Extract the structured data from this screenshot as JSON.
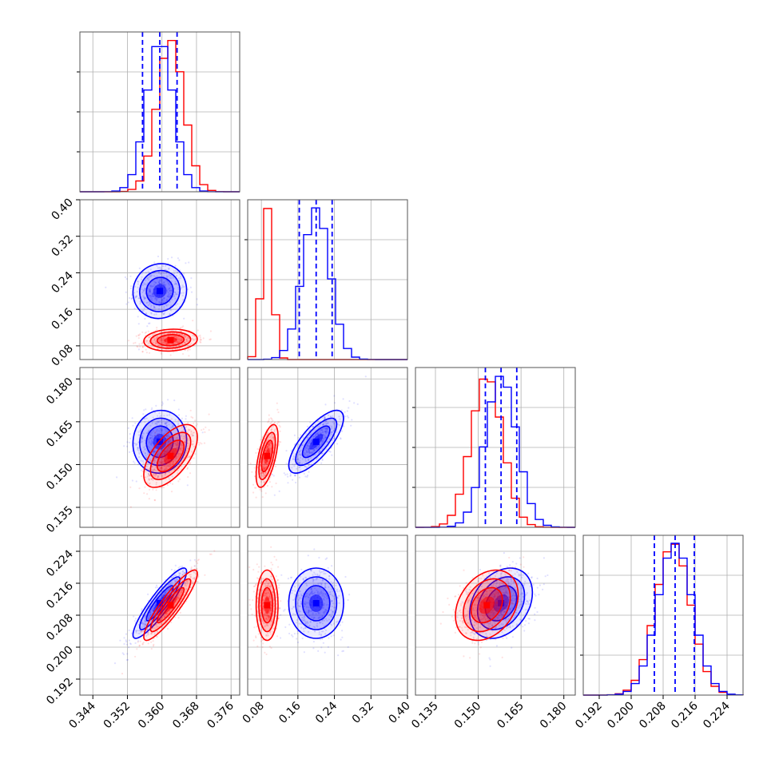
{
  "colors": {
    "series_a": "#0000ff",
    "series_b": "#ff0000",
    "grid": "#b0b0b0",
    "frame": "#555555"
  },
  "chart_data": {
    "type": "corner",
    "n_params": 4,
    "grid": true,
    "series": [
      {
        "color": "#0000ff",
        "means": [
          0.3595,
          0.2,
          0.158,
          0.211
        ],
        "sigmas": [
          0.0031,
          0.03,
          0.0055,
          0.0044
        ]
      },
      {
        "color": "#ff0000",
        "means": [
          0.362,
          0.0925,
          0.153,
          0.2105
        ],
        "sigmas": [
          0.0031,
          0.012,
          0.0055,
          0.0044
        ]
      }
    ],
    "quantiles_series_a": [
      [
        0.3555,
        0.3595,
        0.3635
      ],
      [
        0.163,
        0.2,
        0.235
      ],
      [
        0.1525,
        0.158,
        0.1635
      ],
      [
        0.2058,
        0.211,
        0.2158
      ]
    ],
    "parameters": [
      {
        "range": [
          0.341,
          0.378
        ],
        "ticks": [
          "0.344",
          "0.352",
          "0.360",
          "0.368",
          "0.376"
        ]
      },
      {
        "range": [
          0.05,
          0.4
        ],
        "ticks": [
          "0.08",
          "0.16",
          "0.24",
          "0.32",
          "0.40"
        ]
      },
      {
        "range": [
          0.128,
          0.184
        ],
        "ticks": [
          "0.135",
          "0.150",
          "0.165",
          "0.180"
        ]
      },
      {
        "range": [
          0.188,
          0.228
        ],
        "ticks": [
          "0.192",
          "0.200",
          "0.208",
          "0.216",
          "0.224"
        ]
      }
    ],
    "correlations_series_a": [
      [
        1,
        0.05,
        0.05,
        0.9
      ],
      [
        0.05,
        1,
        0.75,
        0.0
      ],
      [
        0.05,
        0.75,
        1,
        0.3
      ],
      [
        0.9,
        0.0,
        0.3,
        1
      ]
    ],
    "correlations_series_b": [
      [
        1,
        0.1,
        0.6,
        0.9
      ],
      [
        0.1,
        1,
        0.6,
        0.0
      ],
      [
        0.6,
        0.6,
        1,
        0.3
      ],
      [
        0.9,
        0.0,
        0.3,
        1
      ]
    ]
  }
}
